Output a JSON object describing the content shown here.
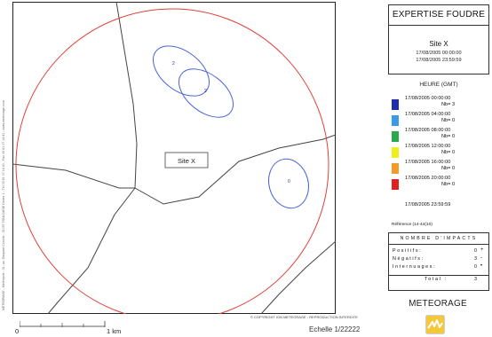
{
  "map": {
    "site_label": "Site X",
    "copyright": "© COPYRIGHT IGN METEORAGE - REPRODUCTION INTERDITE",
    "side_text": "METEORAGE - Météopole - 31, av. Gaspard Coriolis - 31057 TOULOUSE Cedex 1 - Tél 05 61 07 14 40 - Fax 05 61 07 14 41 - www.meteorage.com",
    "strikes": [
      {
        "label": "2"
      },
      {
        "label": "2"
      },
      {
        "label": "0"
      }
    ]
  },
  "scale": {
    "start_label": "0",
    "end_label": "1 km",
    "echelle": "Echelle  1/22222"
  },
  "header": {
    "title": "EXPERTISE FOUDRE",
    "site": "Site X",
    "date_start": "17/08/2005 00:00:00",
    "date_end": "17/08/2005 23:59:59"
  },
  "legend": {
    "heading": "HEURE (GMT)",
    "items": [
      {
        "time": "17/08/2005 00:00:00",
        "nb": "Nb= 3",
        "color": "#1f2bb0"
      },
      {
        "time": "17/08/2005 04:00:00",
        "nb": "Nb= 0",
        "color": "#3a9ae8"
      },
      {
        "time": "17/08/2005 08:00:00",
        "nb": "Nb= 0",
        "color": "#2aa84a"
      },
      {
        "time": "17/08/2005 12:00:00",
        "nb": "Nb= 0",
        "color": "#f2ee1c"
      },
      {
        "time": "17/08/2005 16:00:00",
        "nb": "Nb= 0",
        "color": "#f59a2a"
      },
      {
        "time": "17/08/2005 20:00:00",
        "nb": "Nb= 0",
        "color": "#e02020"
      }
    ],
    "final_time": "17/08/2005 23:59:59",
    "reference": "Référence (14-44(10)"
  },
  "impacts": {
    "heading": "NOMBRE D'IMPACTS",
    "rows": [
      {
        "label": "Positifs:",
        "value": "0",
        "symbol": "+"
      },
      {
        "label": "Négatifs:",
        "value": "3",
        "symbol": "-"
      },
      {
        "label": "Internuages:",
        "value": "0",
        "symbol": "•"
      }
    ],
    "total_label": "Total :",
    "total_value": "3"
  },
  "brand": {
    "name": "METEORAGE"
  },
  "colors": {
    "circle": "#e0403a",
    "strike_ellipse": "#4b64d8",
    "roads": "#444444"
  }
}
